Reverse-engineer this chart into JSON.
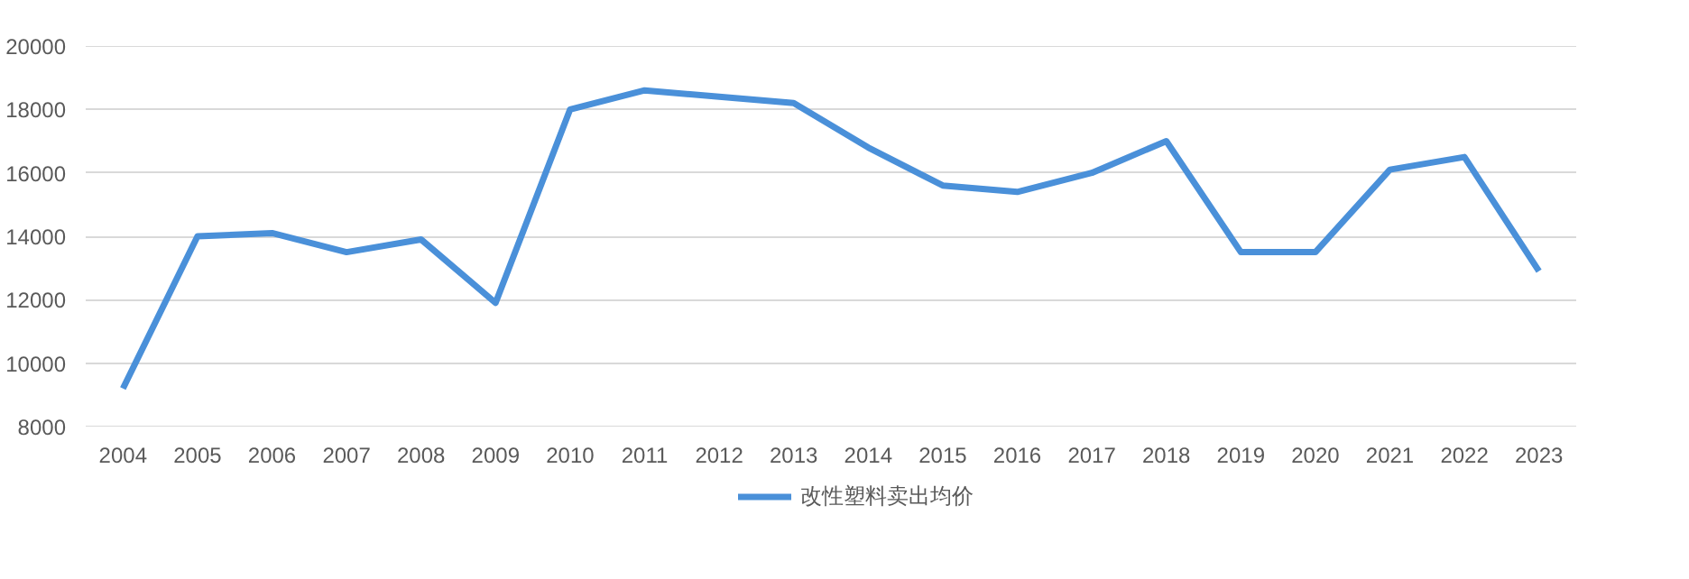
{
  "chart_data": {
    "type": "line",
    "categories": [
      "2004",
      "2005",
      "2006",
      "2007",
      "2008",
      "2009",
      "2010",
      "2011",
      "2012",
      "2013",
      "2014",
      "2015",
      "2016",
      "2017",
      "2018",
      "2019",
      "2020",
      "2021",
      "2022",
      "2023"
    ],
    "series": [
      {
        "name": "改性塑料卖出均价",
        "color": "#4a90d9",
        "values": [
          9200,
          14000,
          14100,
          13500,
          13900,
          11900,
          18000,
          18600,
          18400,
          18200,
          16800,
          15600,
          15400,
          16000,
          17000,
          13500,
          13500,
          16100,
          16500,
          12900
        ]
      }
    ],
    "ylim": [
      8000,
      20000
    ],
    "yticks": [
      8000,
      10000,
      12000,
      14000,
      16000,
      18000,
      20000
    ],
    "grid": "y",
    "legend": "bottom",
    "marker": "none",
    "line_style": "solid"
  }
}
